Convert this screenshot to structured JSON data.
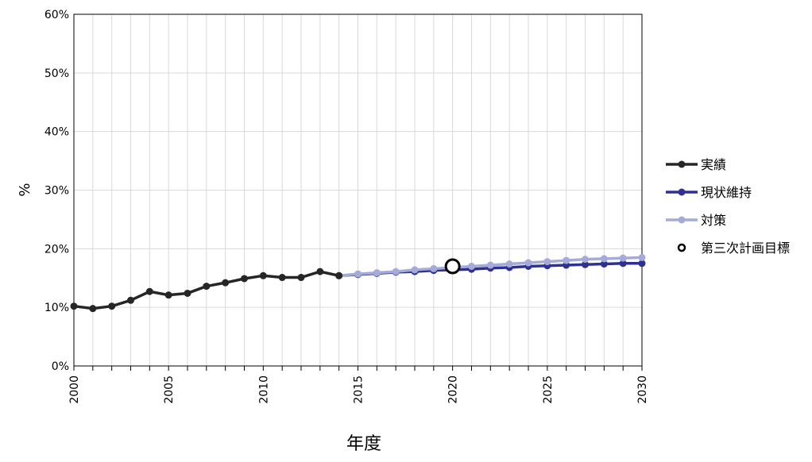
{
  "chart_data": {
    "type": "line",
    "xlabel": "年度",
    "ylabel": "%",
    "xlim": [
      2000,
      2030
    ],
    "ylim": [
      0,
      60
    ],
    "y_ticks": [
      "0%",
      "10%",
      "20%",
      "30%",
      "40%",
      "50%",
      "60%"
    ],
    "x_ticks": [
      "2000",
      "2005",
      "2010",
      "2015",
      "2020",
      "2025",
      "2030"
    ],
    "grid": true,
    "legend_position": "right",
    "series": [
      {
        "name": "実績",
        "color": "#262626",
        "x": [
          2000,
          2001,
          2002,
          2003,
          2004,
          2005,
          2006,
          2007,
          2008,
          2009,
          2010,
          2011,
          2012,
          2013,
          2014
        ],
        "y": [
          10.2,
          9.8,
          10.2,
          11.2,
          12.7,
          12.1,
          12.4,
          13.6,
          14.2,
          14.9,
          15.4,
          15.1,
          15.1,
          16.1,
          15.4
        ]
      },
      {
        "name": "現状維持",
        "color": "#2e3192",
        "x": [
          2014,
          2015,
          2016,
          2017,
          2018,
          2019,
          2020,
          2021,
          2022,
          2023,
          2024,
          2025,
          2026,
          2027,
          2028,
          2029,
          2030
        ],
        "y": [
          15.4,
          15.6,
          15.8,
          16.0,
          16.1,
          16.3,
          16.4,
          16.5,
          16.7,
          16.8,
          17.0,
          17.1,
          17.2,
          17.3,
          17.4,
          17.5,
          17.5
        ]
      },
      {
        "name": "対策",
        "color": "#a5abd9",
        "x": [
          2014,
          2015,
          2016,
          2017,
          2018,
          2019,
          2020,
          2021,
          2022,
          2023,
          2024,
          2025,
          2026,
          2027,
          2028,
          2029,
          2030
        ],
        "y": [
          15.4,
          15.7,
          15.9,
          16.1,
          16.4,
          16.6,
          16.8,
          17.0,
          17.2,
          17.4,
          17.6,
          17.8,
          18.0,
          18.2,
          18.3,
          18.4,
          18.5
        ]
      }
    ],
    "target": {
      "name": "第三次計画目標",
      "x": 2020,
      "y": 17.0
    }
  }
}
